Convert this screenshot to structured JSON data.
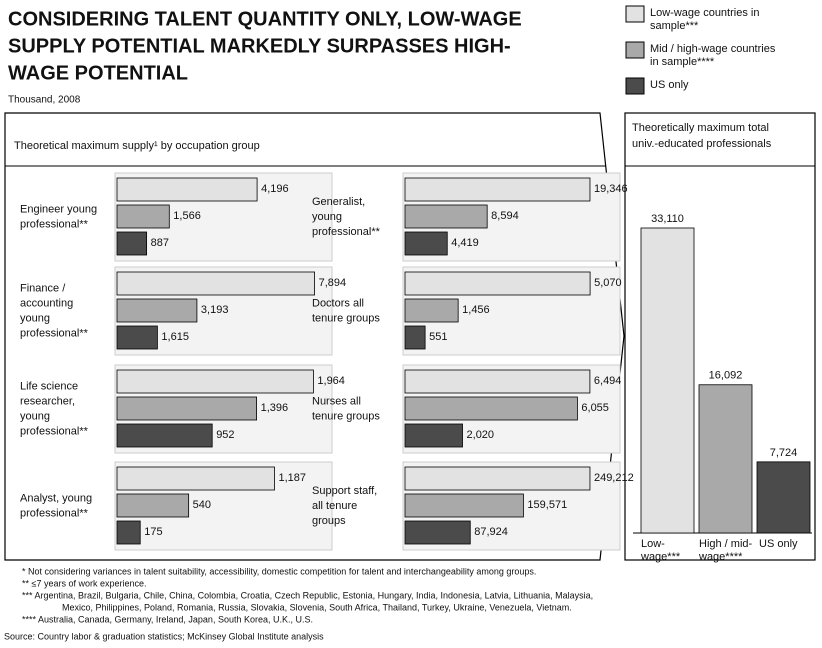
{
  "title": [
    "CONSIDERING TALENT QUANTITY ONLY, LOW-WAGE",
    "SUPPLY POTENTIAL MARKEDLY SURPASSES HIGH-",
    "WAGE POTENTIAL"
  ],
  "subtitle": "Thousand, 2008",
  "legend": [
    {
      "name": [
        "Low-wage countries in",
        "sample***"
      ],
      "color": "#e2e2e2"
    },
    {
      "name": [
        "Mid / high-wage countries",
        "in sample****"
      ],
      "color": "#a9a9a9"
    },
    {
      "name": [
        "US only"
      ],
      "color": "#4b4b4b"
    }
  ],
  "panel_title": "Theoretical maximum supply¹ by occupation group",
  "chart_data": [
    {
      "type": "hbar",
      "label": [
        "Engineer young",
        "professional**"
      ],
      "values": [
        4196,
        1566,
        887
      ],
      "value_labels": [
        "4,196",
        "1,566",
        "887"
      ],
      "xlim": [
        0,
        6200
      ]
    },
    {
      "type": "hbar",
      "label": [
        "Finance /",
        "accounting",
        "young",
        "professional**"
      ],
      "values": [
        7894,
        3193,
        1615
      ],
      "value_labels": [
        "7,894",
        "3,193",
        "1,615"
      ],
      "xlim": [
        0,
        8270
      ]
    },
    {
      "type": "hbar",
      "label": [
        "Life science",
        "researcher,",
        "young",
        "professional**"
      ],
      "values": [
        1964,
        1396,
        952
      ],
      "value_labels": [
        "1,964",
        "1,396",
        "952"
      ],
      "xlim": [
        0,
        2070
      ]
    },
    {
      "type": "hbar",
      "label": [
        "Analyst, young",
        "professional**"
      ],
      "values": [
        1187,
        540,
        175
      ],
      "value_labels": [
        "1,187",
        "540",
        "175"
      ],
      "xlim": [
        0,
        1560
      ]
    },
    {
      "type": "hbar",
      "label": [
        "Generalist,",
        "young",
        "professional**"
      ],
      "values": [
        19346,
        8594,
        4419
      ],
      "value_labels": [
        "19,346",
        "8,594",
        "4,419"
      ],
      "xlim": [
        0,
        21650
      ]
    },
    {
      "type": "hbar",
      "label": [
        "Doctors all",
        "tenure groups"
      ],
      "values": [
        5070,
        1456,
        551
      ],
      "value_labels": [
        "5,070",
        "1,456",
        "551"
      ],
      "xlim": [
        0,
        5670
      ]
    },
    {
      "type": "hbar",
      "label": [
        "Nurses all",
        "tenure groups"
      ],
      "values": [
        6494,
        6055,
        2020
      ],
      "value_labels": [
        "6,494",
        "6,055",
        "2,020"
      ],
      "xlim": [
        0,
        7270
      ]
    },
    {
      "type": "hbar",
      "label": [
        "Support staff,",
        "all tenure",
        "groups"
      ],
      "values": [
        249212,
        159571,
        87924
      ],
      "value_labels": [
        "249,212",
        "159,571",
        "87,924"
      ],
      "xlim": [
        0,
        278900
      ]
    },
    {
      "type": "bar",
      "title": [
        "Theoretically maximum total",
        "univ.-educated professionals"
      ],
      "categories": [
        [
          "Low-",
          "wage***"
        ],
        [
          "High / mid-",
          "wage****"
        ],
        [
          "US only"
        ]
      ],
      "values": [
        33110,
        16092,
        7724
      ],
      "value_labels": [
        "33,110",
        "16,092",
        "7,724"
      ],
      "ylim": [
        0,
        36000
      ]
    }
  ],
  "footnotes": [
    "* Not considering variances in talent suitability, accessibility, domestic competition for talent and interchangeability among groups.",
    "** ≤7 years of work experience.",
    "*** Argentina, Brazil, Bulgaria, Chile, China, Colombia, Croatia, Czech Republic, Estonia, Hungary, India, Indonesia, Latvia, Lithuania, Malaysia,",
    "Mexico, Philippines, Poland, Romania, Russia, Slovakia, Slovenia, South Africa, Thailand, Turkey, Ukraine, Venezuela, Vietnam.",
    "**** Australia, Canada, Germany, Ireland, Japan, South Korea, U.K., U.S."
  ],
  "source": "Source: Country labor & graduation statistics; McKinsey Global Institute analysis"
}
